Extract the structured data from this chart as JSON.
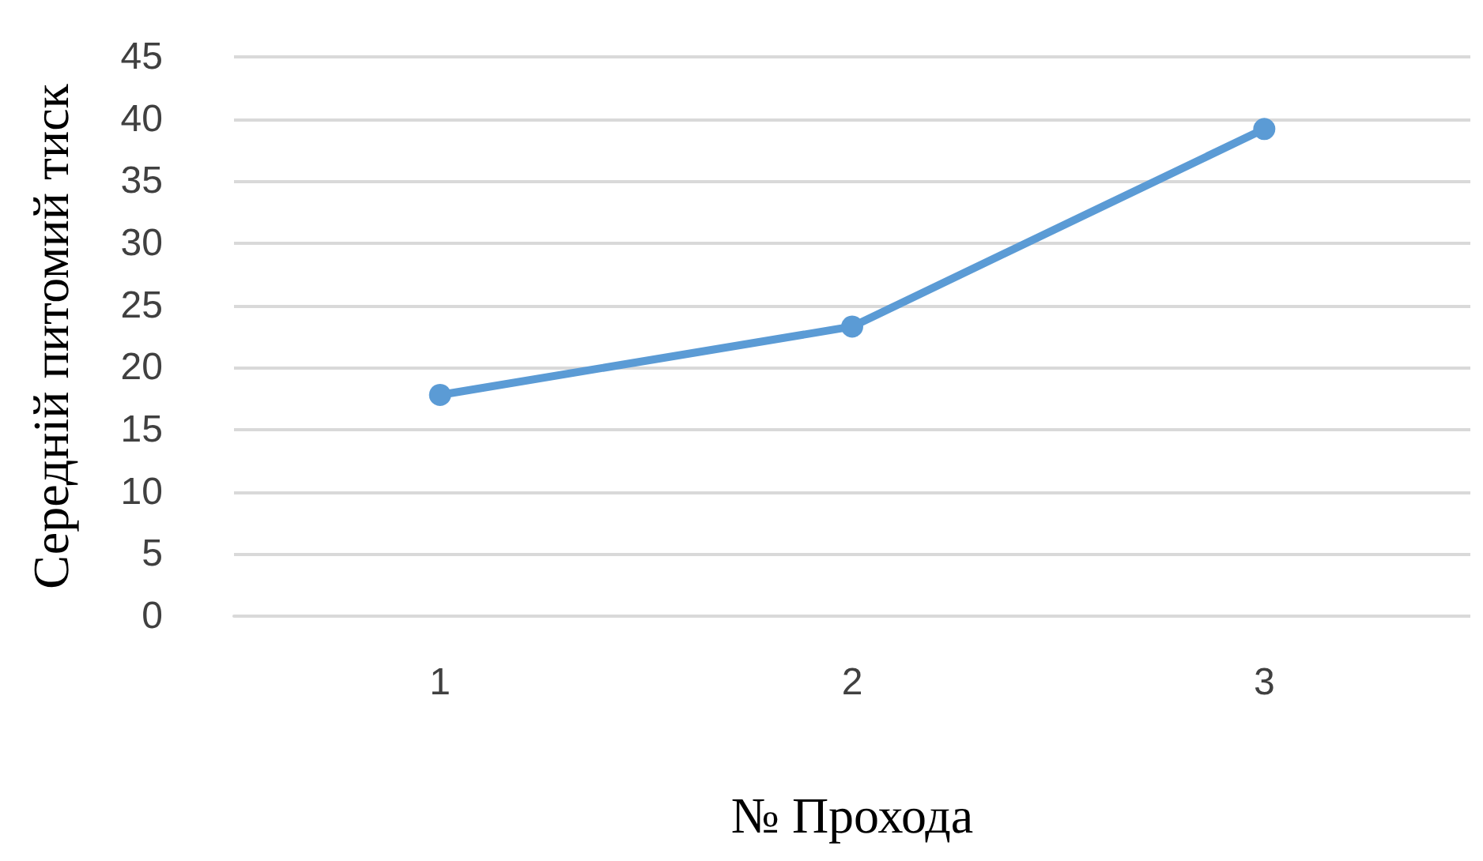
{
  "chart_data": {
    "type": "line",
    "xlabel": "№ Прохода",
    "ylabel": "Середній питомий тиск",
    "categories": [
      "1",
      "2",
      "3"
    ],
    "series": [
      {
        "color": "#5b9bd5",
        "values": [
          17.8,
          23.3,
          39.2
        ]
      }
    ],
    "ylim": [
      0,
      45
    ],
    "yticks": [
      0,
      5,
      10,
      15,
      20,
      25,
      30,
      35,
      40,
      45
    ],
    "grid": "y",
    "marker": "circle",
    "line_style": "solid"
  }
}
